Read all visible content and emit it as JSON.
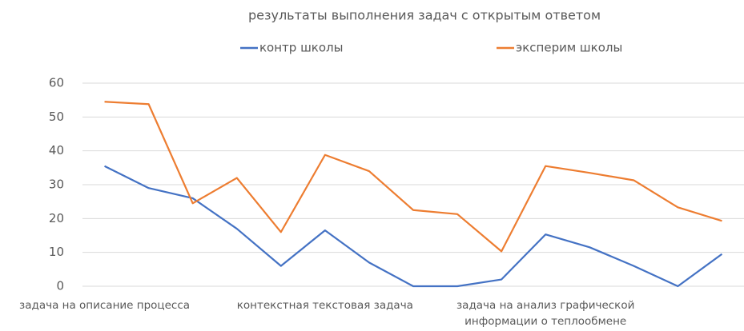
{
  "chart_data": {
    "type": "line",
    "title": "результаты выполнения задач с открытым ответом",
    "categories": [
      "задача на описание процесса",
      null,
      null,
      null,
      null,
      "контекстная текстовая  задача",
      null,
      null,
      null,
      null,
      "задача на анализ графической информации о теплообмене",
      null,
      null,
      null,
      null
    ],
    "series": [
      {
        "name": "контр школы",
        "color": "#4472c4",
        "values": [
          35.5,
          29,
          26,
          17,
          6,
          16.5,
          7,
          0,
          0,
          2,
          15.3,
          11.5,
          6,
          0,
          9.5
        ]
      },
      {
        "name": "эксперим школы",
        "color": "#ed7d31",
        "values": [
          54.5,
          53.8,
          24.5,
          32,
          16,
          38.8,
          34,
          22.5,
          21.3,
          10.3,
          35.5,
          33.5,
          31.3,
          23.3,
          19.3
        ]
      }
    ],
    "ylim": [
      0,
      60
    ],
    "yticks": [
      0,
      10,
      20,
      30,
      40,
      50,
      60
    ],
    "grid": true,
    "legend": "top"
  }
}
